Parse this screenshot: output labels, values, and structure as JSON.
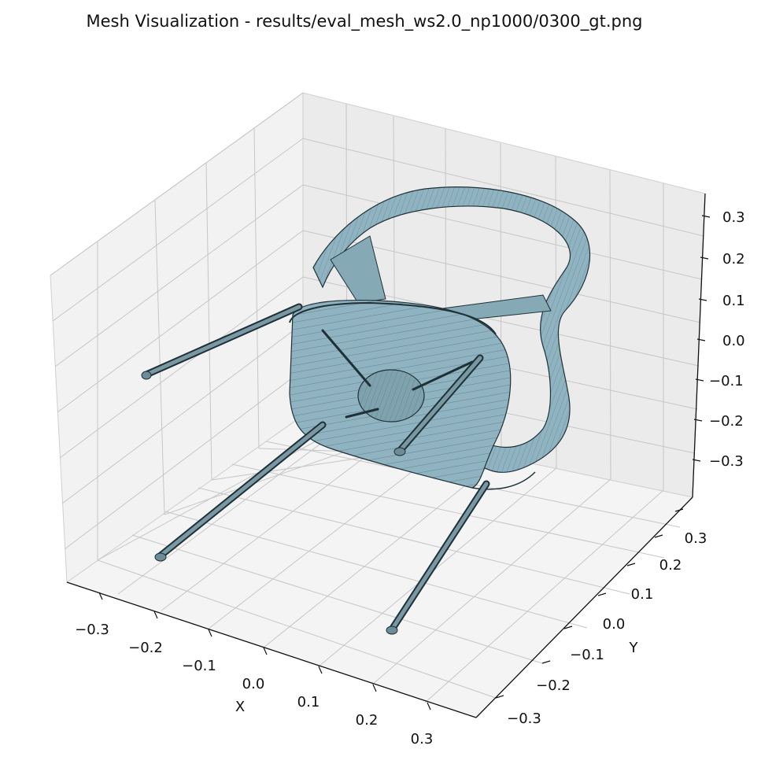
{
  "title": "Mesh Visualization - results/eval_mesh_ws2.0_np1000/0300_gt.png",
  "axes": {
    "x": {
      "label": "X",
      "ticks": [
        "−0.3",
        "−0.2",
        "−0.1",
        "0.0",
        "0.1",
        "0.2",
        "0.3"
      ]
    },
    "y": {
      "label": "Y",
      "ticks": [
        "−0.3",
        "−0.2",
        "−0.1",
        "0.0",
        "0.1",
        "0.2",
        "0.3"
      ]
    },
    "z": {
      "label": "",
      "ticks": [
        "−0.3",
        "−0.2",
        "−0.1",
        "0.0",
        "0.1",
        "0.2",
        "0.3"
      ]
    }
  },
  "colors": {
    "mesh_fill": "#8fb3c0",
    "mesh_edge": "#1f3138",
    "pane_left": "#f2f2f2",
    "pane_back": "#ececec",
    "pane_floor": "#f4f4f4",
    "grid": "#c6c6c6"
  }
}
